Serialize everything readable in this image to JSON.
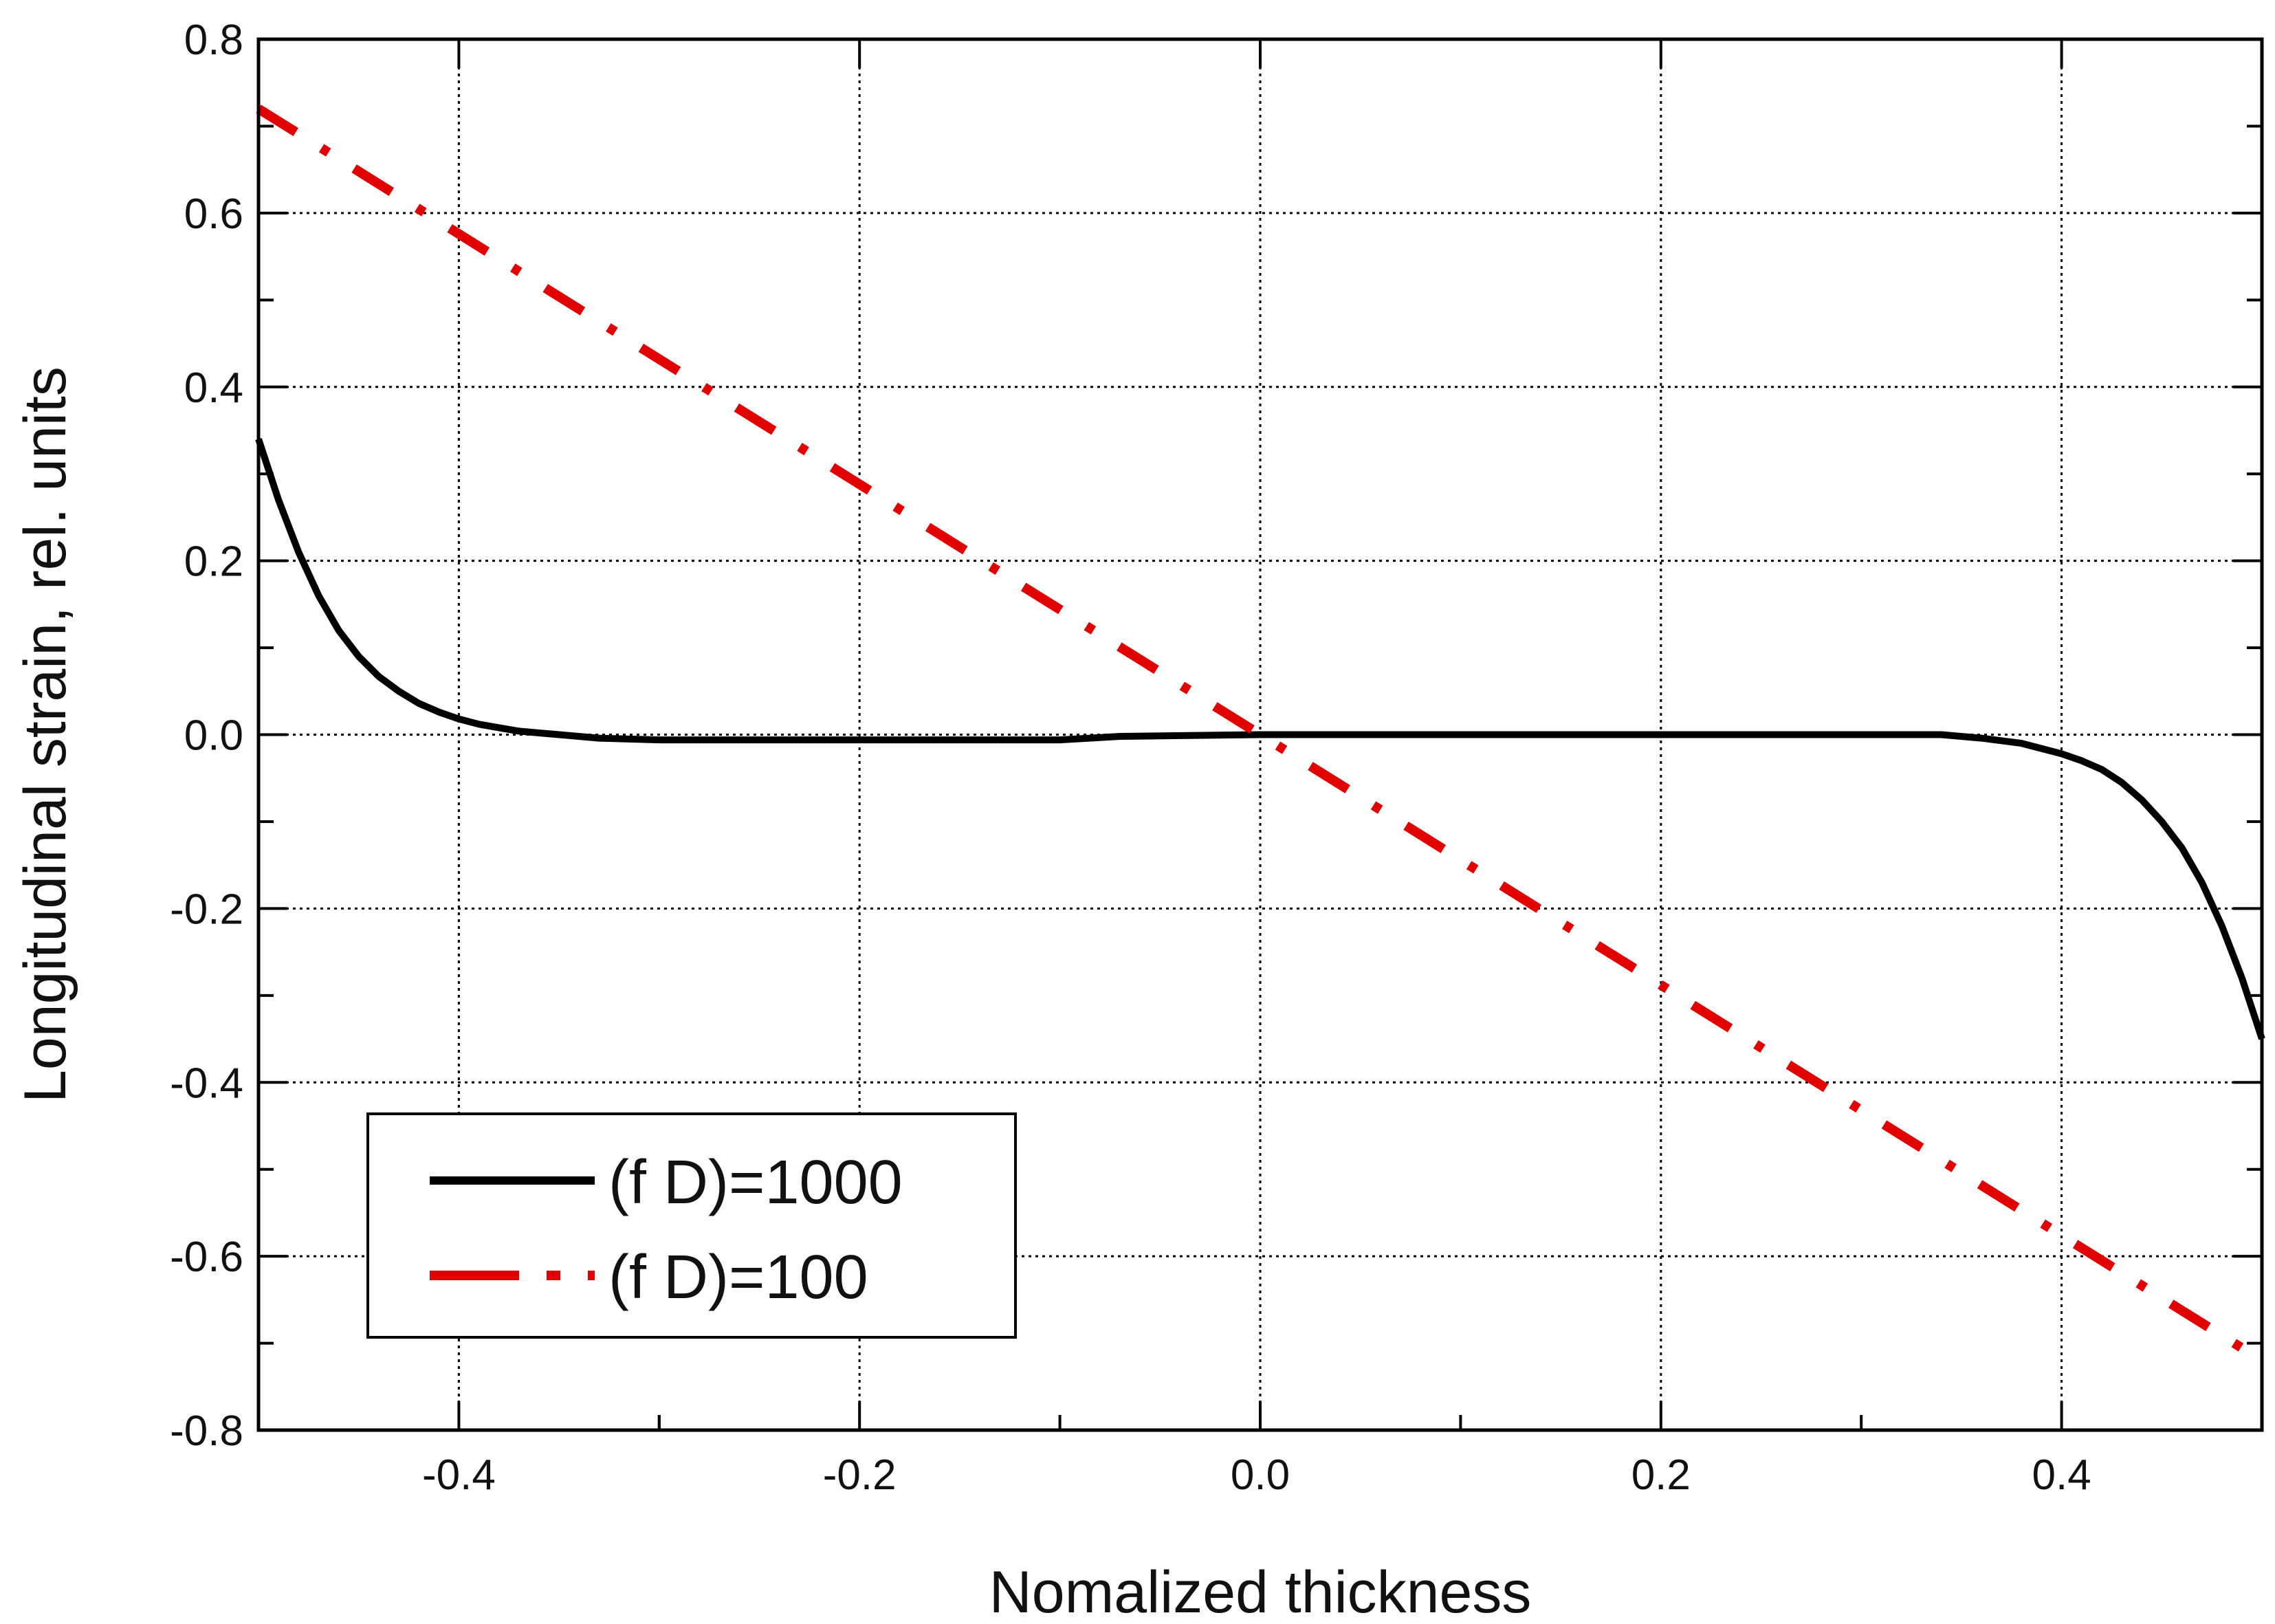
{
  "chart_data": {
    "type": "line",
    "title": "",
    "xlabel": "Nomalized thickness",
    "ylabel": "Longitudinal strain, rel. units",
    "xlim": [
      -0.5,
      0.5
    ],
    "ylim": [
      -0.8,
      0.8
    ],
    "x_ticks": [
      -0.4,
      -0.2,
      0.0,
      0.2,
      0.4
    ],
    "x_tick_labels": [
      "-0.4",
      "-0.2",
      "0.0",
      "0.2",
      "0.4"
    ],
    "y_ticks": [
      -0.8,
      -0.6,
      -0.4,
      -0.2,
      0.0,
      0.2,
      0.4,
      0.6,
      0.8
    ],
    "y_tick_labels": [
      "-0.8",
      "-0.6",
      "-0.4",
      "-0.2",
      "0.0",
      "0.2",
      "0.4",
      "0.6",
      "0.8"
    ],
    "grid": true,
    "legend_position": "bottom-left",
    "series": [
      {
        "name": "(f D)=1000",
        "color": "#000000",
        "style": "solid",
        "x": [
          -0.5,
          -0.49,
          -0.48,
          -0.47,
          -0.46,
          -0.45,
          -0.44,
          -0.43,
          -0.42,
          -0.41,
          -0.4,
          -0.39,
          -0.38,
          -0.37,
          -0.36,
          -0.35,
          -0.33,
          -0.3,
          -0.25,
          -0.2,
          -0.1,
          -0.07,
          0.0,
          0.1,
          0.2,
          0.3,
          0.34,
          0.36,
          0.38,
          0.4,
          0.41,
          0.42,
          0.43,
          0.44,
          0.45,
          0.46,
          0.47,
          0.48,
          0.49,
          0.5
        ],
        "y": [
          0.34,
          0.27,
          0.21,
          0.16,
          0.12,
          0.09,
          0.067,
          0.05,
          0.036,
          0.026,
          0.018,
          0.012,
          0.008,
          0.004,
          0.002,
          0.0,
          -0.004,
          -0.006,
          -0.006,
          -0.006,
          -0.006,
          -0.002,
          0.0,
          0.0,
          0.0,
          0.0,
          0.0,
          -0.004,
          -0.01,
          -0.022,
          -0.03,
          -0.04,
          -0.055,
          -0.075,
          -0.1,
          -0.13,
          -0.17,
          -0.22,
          -0.28,
          -0.35
        ]
      },
      {
        "name": "(f D)=100",
        "color": "#e00000",
        "style": "dash-dot",
        "x": [
          -0.5,
          0.5
        ],
        "y": [
          0.72,
          -0.72
        ]
      }
    ]
  }
}
